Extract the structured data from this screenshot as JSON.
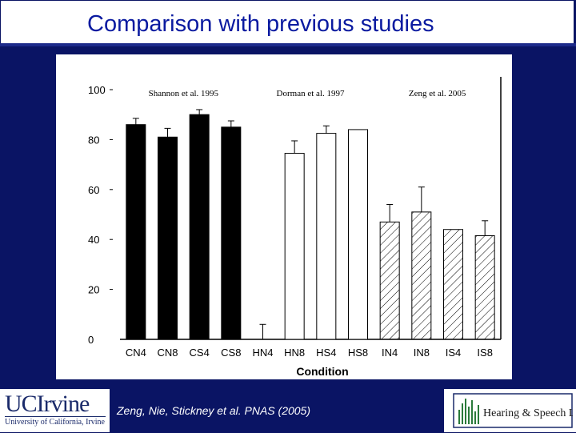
{
  "slide": {
    "title": "Comparison with previous studies",
    "citation": "Zeng, Nie, Stickney et al. PNAS (2005)",
    "logo_left_line1": "UCIrvine",
    "logo_left_line2": "University of California, Irvine",
    "logo_right_text": "Hearing & Speech Lab",
    "colors": {
      "background": "#0a1464",
      "title": "#0a1aa0"
    }
  },
  "chart_data": {
    "type": "bar",
    "xlabel": "Condition",
    "ylabel": "",
    "ylim": [
      0,
      100
    ],
    "yticks": [
      "0",
      "20",
      "40",
      "60",
      "80",
      "100"
    ],
    "categories": [
      "CN4",
      "CN8",
      "CS4",
      "CS8",
      "HN4",
      "HN8",
      "HS4",
      "HS8",
      "IN4",
      "IN8",
      "IS4",
      "IS8"
    ],
    "values": [
      86,
      81,
      90,
      85,
      0,
      74.5,
      82.5,
      84,
      47,
      51,
      44,
      41.5
    ],
    "errors": [
      2.5,
      3.5,
      2,
      2.5,
      6,
      5,
      3,
      0,
      7,
      10,
      0,
      6
    ],
    "fills": [
      "solid",
      "solid",
      "solid",
      "solid",
      "open",
      "open",
      "open",
      "open",
      "hatched",
      "hatched",
      "hatched",
      "hatched"
    ],
    "groups": [
      {
        "label": "Shannon et al. 1995",
        "from": 0,
        "to": 3
      },
      {
        "label": "Dorman et al. 1997",
        "from": 4,
        "to": 7
      },
      {
        "label": "Zeng et al. 2005",
        "from": 8,
        "to": 11
      }
    ]
  }
}
